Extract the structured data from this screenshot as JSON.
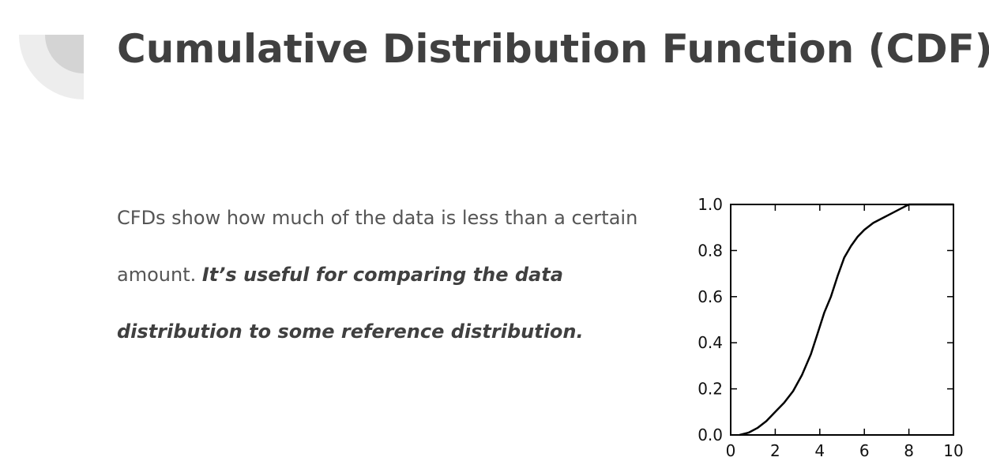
{
  "slide": {
    "title": "Cumulative Distribution Function (CDF)",
    "body": {
      "plain": "CFDs show how much of the data is less than a certain amount. ",
      "emphasis": "It’s useful for comparing the data distribution to some reference distribution."
    },
    "decoration_colors": [
      "#ededed",
      "#d4d4d4"
    ]
  },
  "chart_data": {
    "type": "line",
    "title": "",
    "xlabel": "",
    "ylabel": "",
    "xlim": [
      0,
      10
    ],
    "ylim": [
      0,
      1.0
    ],
    "xticks": [
      0,
      2,
      4,
      6,
      8,
      10
    ],
    "xtick_labels": [
      "0",
      "2",
      "4",
      "6",
      "8",
      "10"
    ],
    "yticks": [
      0.0,
      0.2,
      0.4,
      0.6,
      0.8,
      1.0
    ],
    "ytick_labels": [
      "0.0",
      "0.2",
      "0.4",
      "0.6",
      "0.8",
      "1.0"
    ],
    "grid": false,
    "line_color": "#000000",
    "series": [
      {
        "x": [
          0.4,
          0.8,
          1.2,
          1.6,
          2.0,
          2.4,
          2.8,
          3.2,
          3.6,
          3.9,
          4.2,
          4.5,
          4.8,
          5.1,
          5.4,
          5.7,
          6.0,
          6.4,
          6.8,
          7.2,
          7.6,
          8.0,
          8.5,
          9.0,
          10.0
        ],
        "y": [
          0.0,
          0.01,
          0.03,
          0.06,
          0.1,
          0.14,
          0.19,
          0.26,
          0.35,
          0.44,
          0.53,
          0.6,
          0.69,
          0.77,
          0.82,
          0.86,
          0.89,
          0.92,
          0.94,
          0.96,
          0.98,
          1.0,
          1.0,
          1.0,
          1.0
        ]
      }
    ]
  }
}
